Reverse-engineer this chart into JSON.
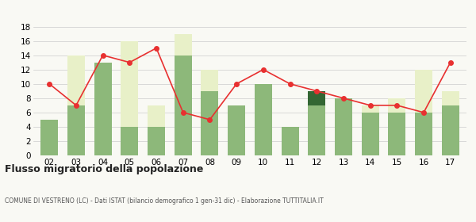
{
  "years": [
    "02",
    "03",
    "04",
    "05",
    "06",
    "07",
    "08",
    "09",
    "10",
    "11",
    "12",
    "13",
    "14",
    "15",
    "16",
    "17"
  ],
  "iscritti_altri_comuni": [
    5,
    7,
    13,
    4,
    4,
    14,
    9,
    7,
    10,
    4,
    7,
    8,
    6,
    6,
    6,
    7
  ],
  "iscritti_estero": [
    0,
    7,
    0,
    12,
    3,
    3,
    3,
    0,
    0,
    0,
    0,
    0,
    1,
    2,
    6,
    2
  ],
  "iscritti_altri": [
    0,
    0,
    0,
    0,
    0,
    0,
    0,
    0,
    0,
    0,
    2,
    0,
    0,
    0,
    0,
    0
  ],
  "cancellati": [
    10,
    7,
    14,
    13,
    15,
    6,
    5,
    10,
    12,
    10,
    9,
    8,
    7,
    7,
    6,
    13
  ],
  "color_altri_comuni": "#8db87a",
  "color_estero": "#e8f0c8",
  "color_altri": "#336633",
  "color_cancellati": "#e83030",
  "title": "Flusso migratorio della popolazione",
  "subtitle": "COMUNE DI VESTRENO (LC) - Dati ISTAT (bilancio demografico 1 gen-31 dic) - Elaborazione TUTTITALIA.IT",
  "ylim": [
    0,
    18
  ],
  "yticks": [
    0,
    2,
    4,
    6,
    8,
    10,
    12,
    14,
    16,
    18
  ],
  "background_color": "#f9f9f4"
}
